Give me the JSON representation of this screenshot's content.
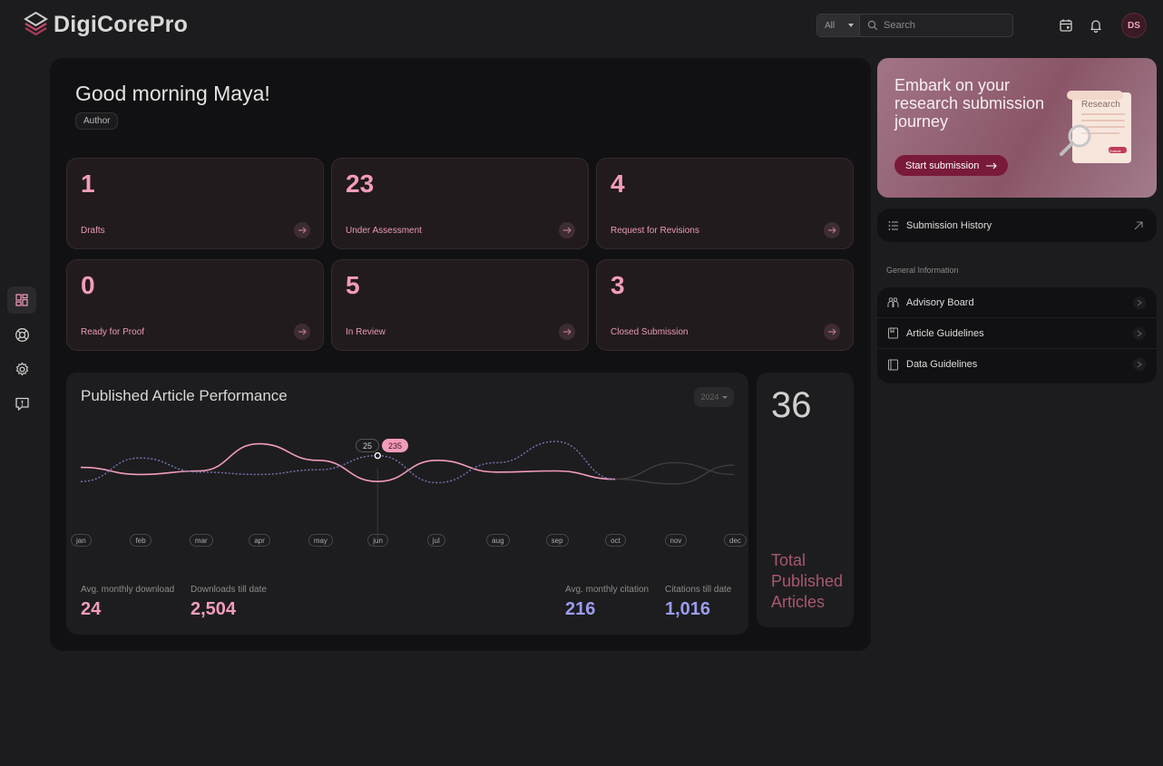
{
  "app": {
    "name": "DigiCorePro"
  },
  "header": {
    "search_category": "All",
    "search_placeholder": "Search",
    "avatar_initials": "DS"
  },
  "greeting": {
    "title": "Good morning Maya!",
    "role": "Author"
  },
  "stats": [
    {
      "value": "1",
      "label": "Drafts"
    },
    {
      "value": "23",
      "label": "Under Assessment"
    },
    {
      "value": "4",
      "label": "Request for Revisions"
    },
    {
      "value": "0",
      "label": "Ready for Proof"
    },
    {
      "value": "5",
      "label": "In Review"
    },
    {
      "value": "3",
      "label": "Closed Submission"
    }
  ],
  "performance": {
    "title": "Published Article Performance",
    "year": "2024",
    "tooltip": {
      "citations": "25",
      "downloads": "235"
    },
    "metrics": [
      {
        "label": "Avg. monthly download",
        "value": "24"
      },
      {
        "label": "Downloads till date",
        "value": "2,504"
      },
      {
        "label": "Avg. monthly citation",
        "value": "216"
      },
      {
        "label": "Citations till date",
        "value": "1,016"
      }
    ]
  },
  "chart_data": {
    "type": "line",
    "categories": [
      "jan",
      "feb",
      "mar",
      "apr",
      "may",
      "jun",
      "jul",
      "aug",
      "sep",
      "oct",
      "nov",
      "dec"
    ],
    "series": [
      {
        "color": "#f39cba",
        "style": "solid",
        "values": [
          58,
          52,
          55,
          78,
          64,
          46,
          64,
          54,
          55,
          48,
          null,
          null
        ]
      },
      {
        "color": "#7676b4",
        "style": "dashed",
        "values": [
          46,
          66,
          54,
          52,
          56,
          68,
          45,
          62,
          80,
          48,
          null,
          null
        ]
      },
      {
        "color": "#3d3d3f",
        "style": "projection",
        "values": [
          null,
          null,
          null,
          null,
          null,
          null,
          null,
          null,
          null,
          48,
          62,
          52
        ]
      },
      {
        "color": "#3d3d3f",
        "style": "projection",
        "values": [
          null,
          null,
          null,
          null,
          null,
          null,
          null,
          null,
          null,
          48,
          44,
          60
        ]
      }
    ],
    "highlight_index": 5,
    "ylim": [
      0,
      100
    ]
  },
  "total": {
    "value": "36",
    "label": "Total Published Articles"
  },
  "promo": {
    "title": "Embark on your research submission journey",
    "button": "Start submission",
    "doc_label": "Research",
    "doc_button": "Submit"
  },
  "history": {
    "label": "Submission History"
  },
  "general": {
    "title": "General Information",
    "items": [
      "Advisory Board",
      "Article Guidelines",
      "Data Guidelines"
    ]
  }
}
